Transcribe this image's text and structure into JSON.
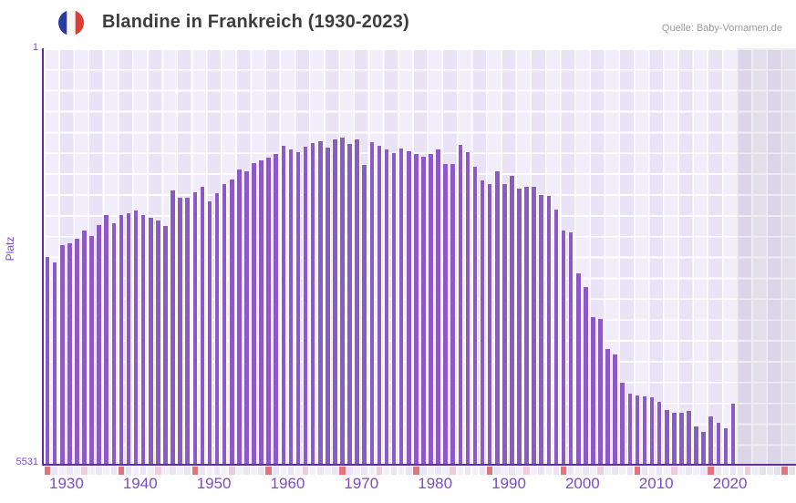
{
  "header": {
    "title": "Blandine in Frankreich (1930-2023)",
    "source": "Quelle: Baby-Vornamen.de",
    "flag": {
      "name": "french-flag-icon",
      "blue": "#2b3a9c",
      "white": "#f7f6f4",
      "red": "#dd3d33"
    }
  },
  "y_axis": {
    "title": "Platz",
    "top_label": "1",
    "bottom_label": "5531"
  },
  "x_axis": {
    "decade_labels": [
      "1930",
      "1940",
      "1950",
      "1960",
      "1970",
      "1980",
      "1990",
      "2000",
      "2010",
      "2020"
    ]
  },
  "colors": {
    "bar": "#8c59c6",
    "axis_line": "#5f2ea5",
    "axis_label": "#7e4bc6",
    "tick_decade": "#e4737c",
    "tick_half_decade": "#f0cbdc",
    "tick_cell_even": "#f3eefa",
    "tick_cell_odd": "#eae4f4",
    "tick_cell_future_even": "#eceaf3",
    "tick_cell_future_odd": "#e4e0ec",
    "plot_bg_light": "#f2edfa",
    "plot_bg_dark": "#eae3f5",
    "future_shade": "rgba(150,140,170,0.16)",
    "title_text": "#3d3d3d",
    "source_text": "#9b9b9b"
  },
  "chart_data": {
    "type": "bar",
    "title": "Blandine in Frankreich (1930-2023)",
    "xlabel": "",
    "ylabel": "Platz",
    "y_inverted": true,
    "ylim": [
      1,
      5531
    ],
    "start_year": 1930,
    "end_year": 2023,
    "future_strip_end_year": 2031,
    "legend": "none",
    "grid": "on",
    "values_are": "rank (Platz), 1 = best, estimated from bar heights",
    "values": [
      2770,
      2840,
      2620,
      2590,
      2530,
      2420,
      2490,
      2350,
      2210,
      2320,
      2210,
      2190,
      2160,
      2220,
      2250,
      2290,
      2360,
      1890,
      1980,
      1990,
      1910,
      1840,
      2030,
      1920,
      1800,
      1740,
      1610,
      1640,
      1520,
      1490,
      1450,
      1400,
      1290,
      1340,
      1380,
      1310,
      1260,
      1230,
      1320,
      1210,
      1190,
      1270,
      1210,
      1550,
      1250,
      1290,
      1350,
      1390,
      1330,
      1370,
      1400,
      1440,
      1400,
      1350,
      1540,
      1540,
      1280,
      1380,
      1580,
      1750,
      1800,
      1630,
      1810,
      1700,
      1860,
      1840,
      1840,
      1950,
      1960,
      2140,
      2420,
      2440,
      2990,
      3170,
      3570,
      3590,
      3990,
      4070,
      4440,
      4590,
      4610,
      4620,
      4640,
      4700,
      4810,
      4840,
      4840,
      4820,
      5020,
      5100,
      4890,
      4980,
      5050,
      4720
    ]
  }
}
